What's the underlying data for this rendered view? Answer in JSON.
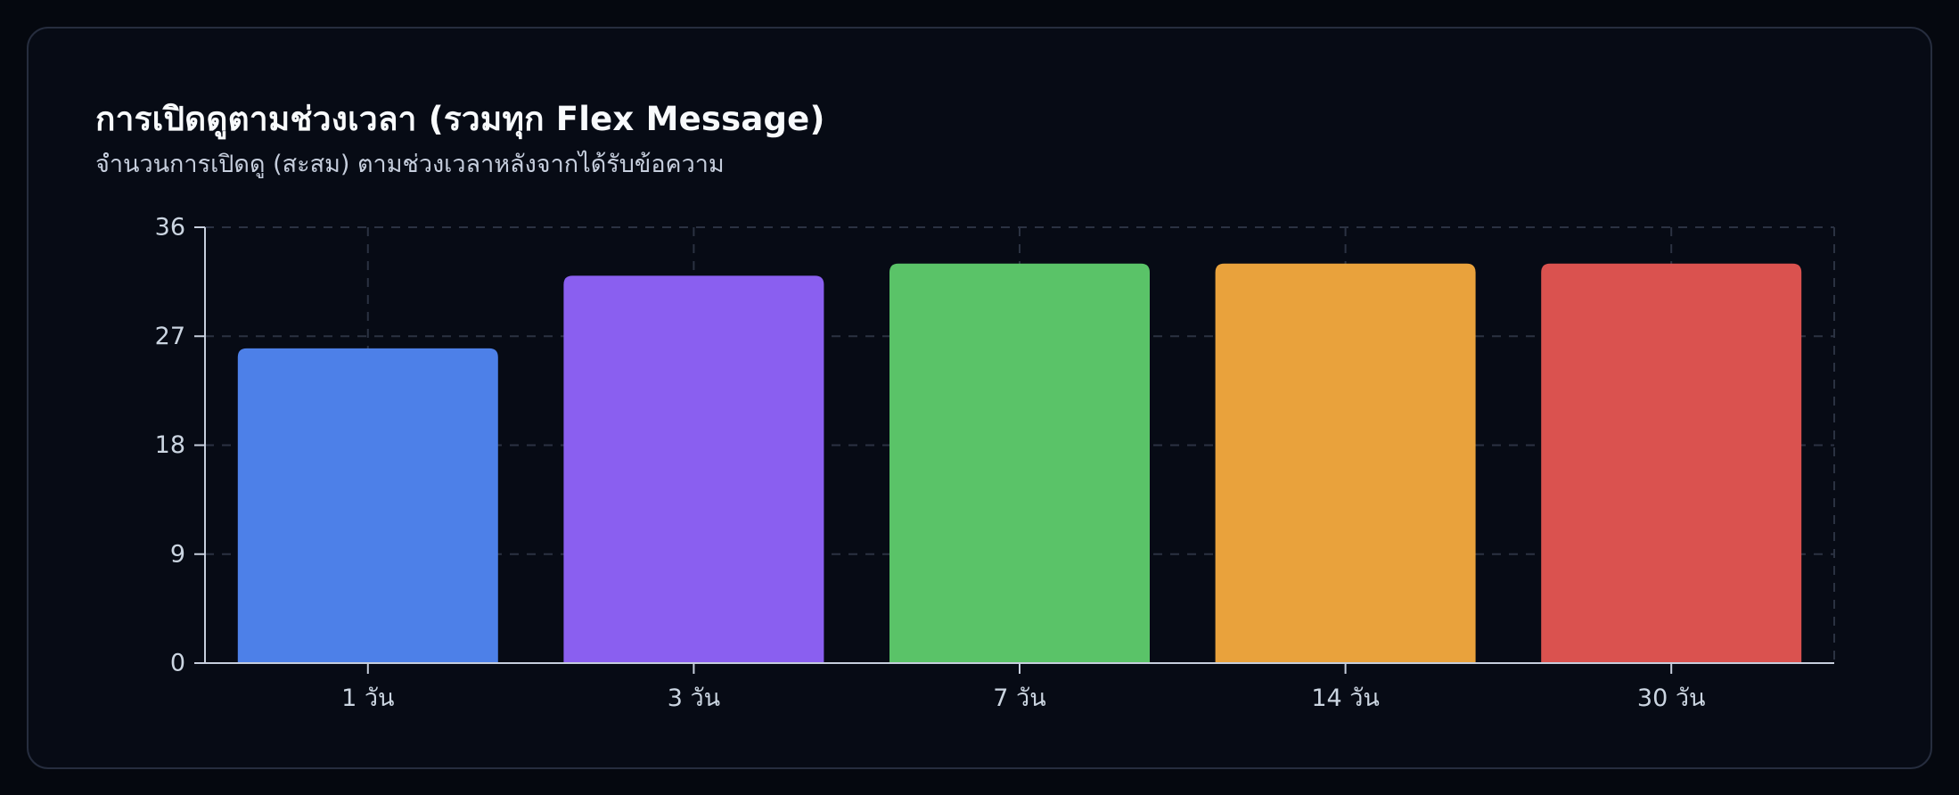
{
  "card": {
    "title": "การเปิดดูตามช่วงเวลา (รวมทุก Flex Message)",
    "subtitle": "จำนวนการเปิดดู (สะสม) ตามช่วงเวลาหลังจากได้รับข้อความ"
  },
  "colors": {
    "background": "#05080f",
    "card_bg": "#070b15",
    "card_border": "#262d3e",
    "title": "#f8fafc",
    "subtitle": "#c6cedd",
    "axis": "#c6cedd",
    "tick_label": "#cbd5e1",
    "grid": "#2b3242"
  },
  "chart_data": {
    "type": "bar",
    "title": "การเปิดดูตามช่วงเวลา (รวมทุก Flex Message)",
    "subtitle": "จำนวนการเปิดดู (สะสม) ตามช่วงเวลาหลังจากได้รับข้อความ",
    "categories": [
      "1 วัน",
      "3 วัน",
      "7 วัน",
      "14 วัน",
      "30 วัน"
    ],
    "values": [
      26,
      32,
      33,
      33,
      33
    ],
    "bar_colors": [
      "#4d80e8",
      "#8a5ff0",
      "#5ac368",
      "#e9a23c",
      "#da524f"
    ],
    "xlabel": "",
    "ylabel": "",
    "ylim": [
      0,
      36
    ],
    "yticks": [
      0,
      9,
      18,
      27,
      36
    ],
    "grid": "dashed-horizontal-and-category-verticals",
    "legend": "none"
  }
}
